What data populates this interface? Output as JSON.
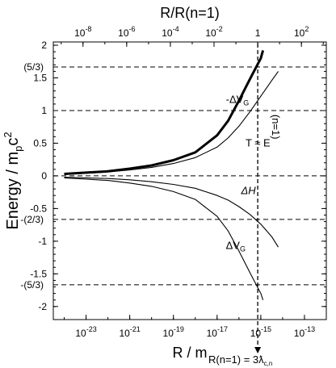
{
  "chart_data": {
    "type": "line",
    "title": "",
    "xlabel_bottom": "R / m",
    "xlabel_top": "R/R(n=1)",
    "ylabel": "Energy / m",
    "ylabel_sub": "p",
    "ylabel_tail": "c",
    "ylabel_sup": "2",
    "xscale": "log",
    "xlim_log10_m": [
      -24.5,
      -12.0
    ],
    "ylim": [
      -2.2,
      2.05
    ],
    "bottom_ticks": [
      {
        "exp": -23,
        "base": "10",
        "label": "-23"
      },
      {
        "exp": -21,
        "base": "10",
        "label": "-21"
      },
      {
        "exp": -19,
        "base": "10",
        "label": "-19"
      },
      {
        "exp": -17,
        "base": "10",
        "label": "-17"
      },
      {
        "exp": -15,
        "base": "10",
        "label": "-15"
      },
      {
        "exp": -13,
        "base": "10",
        "label": "-13"
      }
    ],
    "top_ticks": [
      {
        "ratio_exp": -8,
        "base": "10",
        "label": "-8"
      },
      {
        "ratio_exp": -6,
        "base": "10",
        "label": "-6"
      },
      {
        "ratio_exp": -4,
        "base": "10",
        "label": "-4"
      },
      {
        "ratio_exp": -2,
        "base": "10",
        "label": "-2"
      },
      {
        "ratio_exp": 0,
        "base": "",
        "label": "1"
      },
      {
        "ratio_exp": 2,
        "base": "10",
        "label": "2"
      }
    ],
    "y_ticks": [
      {
        "value": 2,
        "label": "2"
      },
      {
        "value": 1.5,
        "label": "1.5"
      },
      {
        "value": 1,
        "label": "1"
      },
      {
        "value": 0.5,
        "label": "0.5"
      },
      {
        "value": 0,
        "label": "0"
      },
      {
        "value": -0.5,
        "label": "-0.5"
      },
      {
        "value": -1,
        "label": "-1"
      },
      {
        "value": -1.5,
        "label": "-1.5"
      },
      {
        "value": -2,
        "label": "-2"
      }
    ],
    "y_extra_labels": [
      {
        "value": 1.6667,
        "label": "(5/3)"
      },
      {
        "value": -0.6667,
        "label": "-(2/3)"
      },
      {
        "value": -1.6667,
        "label": "-(5/3)"
      }
    ],
    "hlines": [
      1.6667,
      1,
      0,
      -0.6667,
      -1.6667
    ],
    "vline_log10_m": -15.14,
    "vline_label": "(n=1)",
    "vline_note": "R(n=1) = 3",
    "vline_note_symbol": "ƛ",
    "vline_note_sub": "c,n",
    "grid": false,
    "legend": "none",
    "series": [
      {
        "label": "-ΔV",
        "label_sub": "G",
        "weight": "bold",
        "x_log10_m": [
          -24,
          -23,
          -22,
          -21,
          -20,
          -19,
          -18,
          -17,
          -16.5,
          -16,
          -15.5,
          -15,
          -14.9
        ],
        "y": [
          0.03,
          0.05,
          0.07,
          0.11,
          0.16,
          0.24,
          0.36,
          0.62,
          0.84,
          1.15,
          1.48,
          1.8,
          1.92
        ]
      },
      {
        "label": "T ≈ E",
        "label_sub": "",
        "weight": "normal",
        "x_log10_m": [
          -24,
          -23,
          -22,
          -21,
          -20,
          -19,
          -18,
          -17,
          -16.5,
          -16,
          -15.5,
          -15,
          -14.5,
          -14.2
        ],
        "y": [
          0.02,
          0.04,
          0.06,
          0.09,
          0.13,
          0.19,
          0.28,
          0.44,
          0.58,
          0.76,
          0.98,
          1.22,
          1.46,
          1.6
        ]
      },
      {
        "label": "ΔH",
        "label_sub": "",
        "weight": "normal",
        "x_log10_m": [
          -24,
          -23,
          -22,
          -21,
          -20,
          -19,
          -18,
          -17,
          -16.5,
          -16,
          -15.5,
          -15,
          -14.5,
          -14.2
        ],
        "y": [
          -0.02,
          -0.03,
          -0.04,
          -0.06,
          -0.09,
          -0.13,
          -0.19,
          -0.3,
          -0.37,
          -0.47,
          -0.59,
          -0.74,
          -0.93,
          -1.09
        ]
      },
      {
        "label": "ΔV",
        "label_sub": "G",
        "weight": "normal",
        "x_log10_m": [
          -24,
          -23,
          -22,
          -21,
          -20,
          -19,
          -18,
          -17,
          -16.5,
          -16,
          -15.5,
          -15,
          -14.9
        ],
        "y": [
          -0.03,
          -0.05,
          -0.07,
          -0.11,
          -0.16,
          -0.24,
          -0.36,
          -0.62,
          -0.84,
          -1.15,
          -1.48,
          -1.8,
          -1.9
        ]
      }
    ]
  }
}
